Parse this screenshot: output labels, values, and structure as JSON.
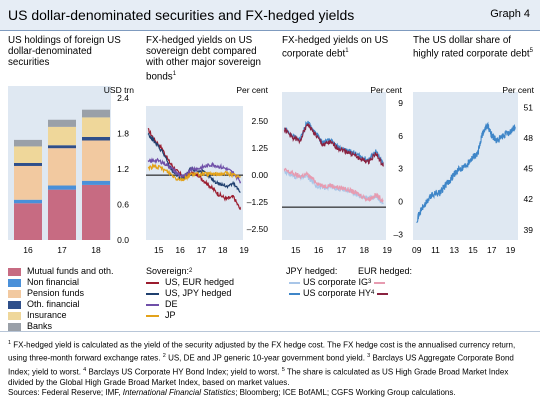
{
  "header": {
    "title": "US dollar-denominated securities and FX-hedged yields",
    "graph_no": "Graph 4"
  },
  "panels": {
    "p1": {
      "title": "US holdings of foreign US dollar-denominated securities",
      "unit": "USD trn"
    },
    "p2": {
      "title": "FX-hedged yields on US sovereign debt compared with other major sovereign bonds",
      "title_sup": "1",
      "unit": "Per cent",
      "legend_title": "Sovereign:",
      "legend_title_sup": "2"
    },
    "p3": {
      "title": "FX-hedged yields on US corporate debt",
      "title_sup": "1",
      "unit": "Per cent",
      "legend_head_left": "JPY hedged:",
      "legend_head_right": "EUR hedged:",
      "legend_row1": "US corporate IG",
      "legend_row1_sup": "3",
      "legend_row2": "US corporate HY",
      "legend_row2_sup": "4"
    },
    "p4": {
      "title": "The US dollar share of highly rated corporate debt",
      "title_sup": "5",
      "unit": "Per cent"
    }
  },
  "notes": {
    "n1_num": "1",
    "n1": "FX-hedged yield is calculated as the yield of the security adjusted by the FX hedge cost. The FX hedge cost is the annualised currency return, using three-month forward exchange rates.",
    "n2_num": "2",
    "n2": "US, DE and JP generic 10-year government bond yield.",
    "n3_num": "3",
    "n3": "Barclays US Aggregate Corporate Bond Index; yield to worst.",
    "n4_num": "4",
    "n4": "Barclays US Corporate HY Bond Index; yield to worst.",
    "n5_num": "5",
    "n5": "The share is calculated as US High Grade Broad Market Index divided by the Global High Grade Broad Market Index, based on market values.",
    "sources_prefix": "Sources: Federal Reserve; IMF,",
    "sources_italic": "International Financial Statistics",
    "sources_suffix": "; Bloomberg; ICE BofAML; CGFS Working Group calculations."
  },
  "chart_data": [
    {
      "type": "bar",
      "stacked": true,
      "title": "US holdings of foreign US dollar-denominated securities",
      "ylabel": "USD trn",
      "ylim": [
        0,
        2.6
      ],
      "yticks": [
        "0.0",
        "0.6",
        "1.2",
        "1.8",
        "2.4"
      ],
      "categories": [
        "16",
        "17",
        "18"
      ],
      "series": [
        {
          "name": "Mutual funds and oth.",
          "color": "#c76b82",
          "values": [
            0.62,
            0.85,
            0.93
          ]
        },
        {
          "name": "Non financial",
          "color": "#4a90d9",
          "values": [
            0.06,
            0.07,
            0.07
          ]
        },
        {
          "name": "Pension funds",
          "color": "#f2c9a0",
          "values": [
            0.57,
            0.63,
            0.68
          ]
        },
        {
          "name": "Oth. financial",
          "color": "#2f4f8a",
          "values": [
            0.05,
            0.05,
            0.06
          ]
        },
        {
          "name": "Insurance",
          "color": "#efd79a",
          "values": [
            0.28,
            0.31,
            0.33
          ]
        },
        {
          "name": "Banks",
          "color": "#9aa0a8",
          "values": [
            0.11,
            0.12,
            0.13
          ]
        }
      ]
    },
    {
      "type": "line",
      "title": "FX-hedged yields on US sovereign debt compared with other major sovereign bonds",
      "ylabel": "Per cent",
      "ylim": [
        -3.0,
        3.2
      ],
      "yticks": [
        "–2.50",
        "–1.25",
        "0.00",
        "1.25",
        "2.50"
      ],
      "xticks": [
        "15",
        "16",
        "17",
        "18",
        "19"
      ],
      "x": [
        2015.0,
        2015.33,
        2015.67,
        2016.0,
        2016.33,
        2016.67,
        2017.0,
        2017.33,
        2017.67,
        2018.0,
        2018.33,
        2018.67,
        2019.0,
        2019.33
      ],
      "series": [
        {
          "name": "US, EUR hedged",
          "color": "#9b1c2e",
          "values": [
            2.1,
            1.6,
            1.2,
            0.6,
            0.2,
            -0.1,
            0.1,
            0.0,
            -0.3,
            -0.6,
            -0.9,
            -1.1,
            -1.0,
            -1.6
          ]
        },
        {
          "name": "US, JPY hedged",
          "color": "#1f3f6e",
          "values": [
            1.9,
            1.5,
            1.1,
            0.4,
            0.0,
            -0.2,
            0.3,
            0.2,
            0.1,
            -0.2,
            -0.4,
            -0.5,
            -0.4,
            -0.8
          ]
        },
        {
          "name": "DE",
          "color": "#6f4fa8",
          "values": [
            0.6,
            0.7,
            0.6,
            0.4,
            0.1,
            -0.1,
            0.3,
            0.3,
            0.4,
            0.5,
            0.4,
            0.3,
            0.1,
            -0.3
          ]
        },
        {
          "name": "JP",
          "color": "#e3a21a",
          "values": [
            0.35,
            0.4,
            0.3,
            0.1,
            -0.15,
            -0.2,
            0.05,
            0.05,
            0.05,
            0.05,
            0.05,
            0.1,
            0.0,
            -0.1
          ]
        }
      ]
    },
    {
      "type": "line",
      "title": "FX-hedged yields on US corporate debt",
      "ylabel": "Per cent",
      "ylim": [
        -3.5,
        10
      ],
      "yticks": [
        "–3",
        "0",
        "3",
        "6",
        "9"
      ],
      "xticks": [
        "15",
        "16",
        "17",
        "18",
        "19"
      ],
      "x": [
        2015.0,
        2015.33,
        2015.67,
        2016.0,
        2016.33,
        2016.67,
        2017.0,
        2017.33,
        2017.67,
        2018.0,
        2018.33,
        2018.67,
        2019.0,
        2019.33
      ],
      "series": [
        {
          "name": "US corporate IG, JPY hedged",
          "color": "#a9c6e8",
          "values": [
            2.8,
            2.4,
            2.2,
            2.3,
            1.6,
            1.2,
            1.4,
            1.2,
            1.1,
            0.8,
            0.5,
            0.3,
            0.5,
            -0.1
          ]
        },
        {
          "name": "US corporate IG, EUR hedged",
          "color": "#e79bb0",
          "values": [
            2.9,
            2.6,
            2.3,
            2.5,
            1.9,
            1.4,
            1.5,
            1.3,
            1.2,
            0.9,
            0.6,
            0.2,
            0.6,
            0.1
          ]
        },
        {
          "name": "US corporate HY, JPY hedged",
          "color": "#3f86c8",
          "values": [
            6.8,
            6.0,
            5.6,
            7.3,
            6.4,
            5.4,
            5.6,
            5.0,
            4.7,
            4.5,
            4.1,
            3.8,
            4.6,
            3.4
          ]
        },
        {
          "name": "US corporate HY, EUR hedged",
          "color": "#8a2240",
          "values": [
            6.6,
            5.9,
            5.5,
            7.1,
            6.2,
            5.2,
            5.4,
            4.9,
            4.6,
            4.3,
            3.9,
            3.6,
            4.4,
            3.2
          ]
        }
      ]
    },
    {
      "type": "line",
      "title": "The US dollar share of highly rated corporate debt",
      "ylabel": "Per cent",
      "ylim": [
        38,
        52.5
      ],
      "yticks": [
        "39",
        "42",
        "45",
        "48",
        "51"
      ],
      "xticks": [
        "09",
        "11",
        "13",
        "15",
        "17",
        "19"
      ],
      "x": [
        2009.0,
        2009.5,
        2010.0,
        2010.5,
        2011.0,
        2011.5,
        2012.0,
        2012.5,
        2013.0,
        2013.5,
        2014.0,
        2014.5,
        2015.0,
        2015.5,
        2016.0,
        2016.5,
        2017.0,
        2017.5,
        2018.0,
        2018.5,
        2019.0,
        2019.5
      ],
      "series": [
        {
          "name": "US dollar share",
          "color": "#3f86c8",
          "values": [
            40.0,
            41.0,
            41.6,
            42.3,
            42.6,
            42.6,
            43.3,
            43.8,
            44.5,
            44.9,
            45.2,
            45.6,
            46.2,
            46.4,
            48.4,
            49.3,
            48.3,
            47.7,
            48.0,
            48.4,
            48.6,
            49.1
          ]
        }
      ]
    }
  ]
}
